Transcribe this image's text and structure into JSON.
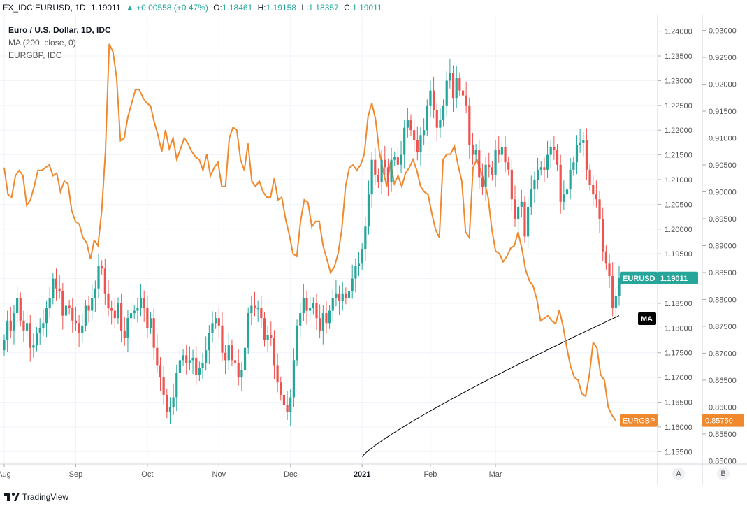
{
  "header": {
    "symbol": "FX_IDC:EURUSD, 1D",
    "last": "1.19011",
    "change": "▲ +0.00558 (+0.47%)",
    "o_label": "O:",
    "o_value": "1.18461",
    "h_label": "H:",
    "h_value": "1.19158",
    "l_label": "L:",
    "l_value": "1.18357",
    "c_label": "C:",
    "c_value": "1.19011"
  },
  "legend": {
    "line1": "Euro / U.S. Dollar, 1D, IDC",
    "line2": "MA (200, close, 0)",
    "line3": "EURGBP, IDC"
  },
  "axis_buttons": {
    "a": "A",
    "b": "B"
  },
  "footer": {
    "brand": "TradingView"
  },
  "colors": {
    "up": "#26a69a",
    "down": "#ef5350",
    "eurgbp": "#f0892e",
    "ma": "#000000",
    "grid": "#f0f3fa",
    "axis_text": "#555555"
  },
  "chart_data": {
    "type": "candlestick",
    "title": "Euro / U.S. Dollar, 1D, IDC",
    "x_labels": [
      "Aug",
      "Sep",
      "Oct",
      "Nov",
      "Dec",
      "2021",
      "Feb",
      "Mar"
    ],
    "x_label_positions": [
      0,
      22,
      44,
      66,
      88,
      110,
      131,
      151
    ],
    "y_left_ticks": [
      "1.15500",
      "1.16000",
      "1.16500",
      "1.17000",
      "1.17500",
      "1.18000",
      "1.18500",
      "1.19000",
      "1.19500",
      "1.20000",
      "1.20500",
      "1.21000",
      "1.21500",
      "1.22000",
      "1.22500",
      "1.23000",
      "1.23500",
      "1.24000"
    ],
    "y_right_ticks": [
      "0.85000",
      "0.85500",
      "0.86000",
      "0.86500",
      "0.87000",
      "0.87500",
      "0.88000",
      "0.88500",
      "0.89000",
      "0.89500",
      "0.90000",
      "0.90500",
      "0.91000",
      "0.91500",
      "0.92000",
      "0.92500",
      "0.93000"
    ],
    "eurusd_range": [
      1.1525,
      1.2432
    ],
    "eurgbp_range": [
      0.8494,
      0.9328
    ],
    "eurusd_closes": [
      1.1775,
      1.1815,
      1.1795,
      1.183,
      1.186,
      1.1815,
      1.1795,
      1.181,
      1.176,
      1.1765,
      1.179,
      1.18,
      1.181,
      1.184,
      1.186,
      1.19,
      1.188,
      1.1875,
      1.1825,
      1.1845,
      1.184,
      1.1815,
      1.181,
      1.179,
      1.1805,
      1.1845,
      1.1835,
      1.186,
      1.188,
      1.1925,
      1.192,
      1.187,
      1.184,
      1.1835,
      1.182,
      1.185,
      1.1795,
      1.178,
      1.182,
      1.183,
      1.1835,
      1.184,
      1.186,
      1.184,
      1.18,
      1.182,
      1.176,
      1.1725,
      1.17,
      1.1665,
      1.163,
      1.164,
      1.166,
      1.171,
      1.1735,
      1.1745,
      1.173,
      1.1735,
      1.174,
      1.1705,
      1.172,
      1.173,
      1.1755,
      1.179,
      1.181,
      1.182,
      1.1805,
      1.175,
      1.1735,
      1.1765,
      1.1735,
      1.173,
      1.17,
      1.1715,
      1.176,
      1.183,
      1.1845,
      1.184,
      1.184,
      1.182,
      1.1775,
      1.1785,
      1.178,
      1.1725,
      1.169,
      1.1665,
      1.1645,
      1.163,
      1.166,
      1.1735,
      1.1805,
      1.183,
      1.186,
      1.1835,
      1.184,
      1.185,
      1.182,
      1.1795,
      1.183,
      1.181,
      1.1835,
      1.186,
      1.187,
      1.1855,
      1.187,
      1.186,
      1.1875,
      1.19,
      1.1925,
      1.193,
      1.196,
      1.2005,
      1.207,
      1.214,
      1.211,
      1.2095,
      1.214,
      1.2125,
      1.2095,
      1.214,
      1.2145,
      1.213,
      1.215,
      1.2205,
      1.222,
      1.22,
      1.218,
      1.2155,
      1.219,
      1.22,
      1.225,
      1.228,
      1.224,
      1.2205,
      1.222,
      1.225,
      1.23,
      1.2315,
      1.2265,
      1.2305,
      1.228,
      1.227,
      1.225,
      1.217,
      1.215,
      1.216,
      1.2105,
      1.2085,
      1.213,
      1.2125,
      1.211,
      1.216,
      1.215,
      1.2165,
      1.2135,
      1.212,
      1.206,
      1.202,
      1.2045,
      1.2055,
      1.1985,
      1.2045,
      1.208,
      1.21,
      1.212,
      1.2125,
      1.212,
      1.215,
      1.2165,
      1.216,
      1.213,
      1.2055,
      1.207,
      1.208,
      1.212,
      1.2135,
      1.217,
      1.2175,
      1.218,
      1.212,
      1.209,
      1.207,
      1.206,
      1.202,
      1.1955,
      1.193,
      1.1905,
      1.184,
      1.1865,
      1.1901
    ],
    "eurgbp_line": [
      0.9045,
      0.8995,
      0.899,
      0.903,
      0.904,
      0.903,
      0.8975,
      0.8985,
      0.901,
      0.904,
      0.904,
      0.9045,
      0.905,
      0.903,
      0.9035,
      0.9,
      0.902,
      0.9015,
      0.8965,
      0.8945,
      0.894,
      0.8915,
      0.8905,
      0.8875,
      0.891,
      0.89,
      0.8965,
      0.9075,
      0.9275,
      0.926,
      0.921,
      0.9095,
      0.91,
      0.914,
      0.9165,
      0.919,
      0.919,
      0.9175,
      0.9165,
      0.916,
      0.913,
      0.9105,
      0.9075,
      0.9115,
      0.908,
      0.91,
      0.906,
      0.908,
      0.91,
      0.909,
      0.9075,
      0.9065,
      0.906,
      0.904,
      0.907,
      0.903,
      0.9045,
      0.9055,
      0.901,
      0.901,
      0.91,
      0.912,
      0.9115,
      0.906,
      0.904,
      0.909,
      0.902,
      0.901,
      0.902,
      0.9,
      0.899,
      0.899,
      0.9025,
      0.8985,
      0.899,
      0.895,
      0.892,
      0.8885,
      0.888,
      0.8945,
      0.8985,
      0.898,
      0.8935,
      0.8945,
      0.8945,
      0.89,
      0.8875,
      0.885,
      0.886,
      0.8885,
      0.893,
      0.901,
      0.9045,
      0.905,
      0.904,
      0.905,
      0.907,
      0.914,
      0.9165,
      0.9135,
      0.9075,
      0.904,
      0.901,
      0.9055,
      0.9015,
      0.903,
      0.901,
      0.9035,
      0.9045,
      0.906,
      0.904,
      0.901,
      0.9,
      0.8995,
      0.896,
      0.893,
      0.8915,
      0.906,
      0.907,
      0.907,
      0.9085,
      0.905,
      0.902,
      0.8925,
      0.8915,
      0.9045,
      0.906,
      0.904,
      0.902,
      0.899,
      0.893,
      0.889,
      0.8885,
      0.887,
      0.888,
      0.8895,
      0.89,
      0.8925,
      0.8895,
      0.8855,
      0.8835,
      0.8825,
      0.88,
      0.876,
      0.8765,
      0.877,
      0.876,
      0.8755,
      0.878,
      0.875,
      0.871,
      0.8675,
      0.8655,
      0.865,
      0.8625,
      0.862,
      0.866,
      0.872,
      0.871,
      0.866,
      0.865,
      0.86,
      0.8585,
      0.8575
    ],
    "ma_line": {
      "start_index": 110,
      "values_start": 1.154,
      "values_end": 1.1825
    },
    "eurusd_last": "1.19011",
    "eurgbp_last": "0.85750",
    "ma_label": "MA",
    "eurusd_label": "EURUSD",
    "eurgbp_label": "EURGBP"
  }
}
